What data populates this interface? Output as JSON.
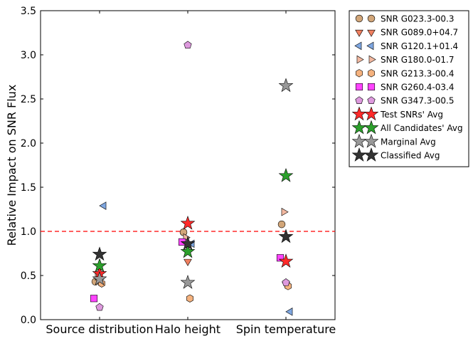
{
  "chart_data": {
    "type": "scatter",
    "title": "",
    "xlabel": "",
    "ylabel": "Relative Impact on SNR Flux",
    "ylim": [
      0.0,
      3.5
    ],
    "yticks": [
      "0.0",
      "0.5",
      "1.0",
      "1.5",
      "2.0",
      "2.5",
      "3.0",
      "3.5"
    ],
    "categories": [
      "Source distribution",
      "Halo height",
      "Spin temperature"
    ],
    "reference_line": {
      "y": 1.0,
      "style": "dashed",
      "color": "#ff0000"
    },
    "legend_position": "outside-right",
    "series": [
      {
        "name": "SNR G023.3-00.3",
        "marker": "circle",
        "color": "#d2a679",
        "values": [
          0.43,
          0.99,
          1.08
        ]
      },
      {
        "name": "SNR G089.0+04.7",
        "marker": "triangle-down",
        "color": "#f08060",
        "values": [
          0.44,
          0.66,
          0.4
        ]
      },
      {
        "name": "SNR G120.1+01.4",
        "marker": "triangle-left",
        "color": "#7ea6e0",
        "values": [
          1.29,
          0.86,
          0.09
        ]
      },
      {
        "name": "SNR G180.0-01.7",
        "marker": "triangle-right",
        "color": "#f2b8a0",
        "values": [
          0.49,
          0.93,
          1.22
        ]
      },
      {
        "name": "SNR G213.3-00.4",
        "marker": "hexagon",
        "color": "#f5b27e",
        "values": [
          0.41,
          0.24,
          0.38
        ]
      },
      {
        "name": "SNR G260.4-03.4",
        "marker": "square",
        "color": "#ff44ff",
        "values": [
          0.24,
          0.88,
          0.7
        ]
      },
      {
        "name": "SNR G347.3-00.5",
        "marker": "pentagon",
        "color": "#dd99dd",
        "values": [
          0.14,
          3.11,
          0.42
        ]
      },
      {
        "name": "Test SNRs' Avg",
        "marker": "star",
        "color": "#ff2a2a",
        "values": [
          0.52,
          1.09,
          0.66
        ]
      },
      {
        "name": "All Candidates' Avg",
        "marker": "star",
        "color": "#2ca02c",
        "values": [
          0.61,
          0.77,
          1.63
        ]
      },
      {
        "name": "Marginal Avg",
        "marker": "star",
        "color": "#999999",
        "values": [
          0.46,
          0.42,
          2.65
        ]
      },
      {
        "name": "Classified Avg",
        "marker": "star",
        "color": "#333333",
        "values": [
          0.74,
          0.86,
          0.94
        ]
      }
    ]
  }
}
